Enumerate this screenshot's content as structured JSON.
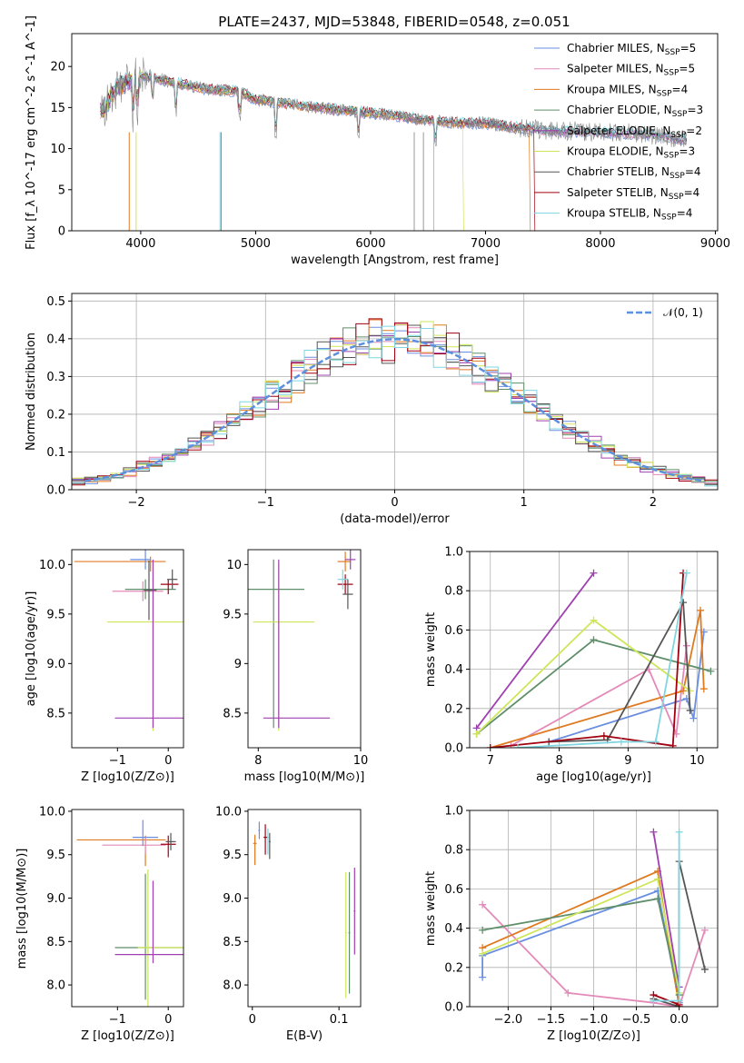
{
  "figure_title": "PLATE=2437, MJD=53848, FIBERID=0548, z=0.051",
  "legend_spectrum": [
    {
      "text": "Chabrier MILES, N",
      "sub": "SSP",
      "suffix": "=5",
      "color": "#6a8fe0"
    },
    {
      "text": "Salpeter MILES, N",
      "sub": "SSP",
      "suffix": "=5",
      "color": "#e48ab8"
    },
    {
      "text": "Kroupa MILES, N",
      "sub": "SSP",
      "suffix": "=4",
      "color": "#e07a20"
    },
    {
      "text": "Chabrier ELODIE, N",
      "sub": "SSP",
      "suffix": "=3",
      "color": "#5f8f6a"
    },
    {
      "text": "Salpeter ELODIE, N",
      "sub": "SSP",
      "suffix": "=2",
      "color": "#a040b0"
    },
    {
      "text": "Kroupa ELODIE, N",
      "sub": "SSP",
      "suffix": "=3",
      "color": "#cfe65a"
    },
    {
      "text": "Chabrier STELIB, N",
      "sub": "SSP",
      "suffix": "=4",
      "color": "#555555"
    },
    {
      "text": "Salpeter STELIB, N",
      "sub": "SSP",
      "suffix": "=4",
      "color": "#a00010"
    },
    {
      "text": "Kroupa STELIB, N",
      "sub": "SSP",
      "suffix": "=4",
      "color": "#7fd6e0"
    }
  ],
  "legend_hist": "𝒩(0, 1)",
  "chart_data": [
    {
      "type": "line",
      "id": "spectrum",
      "xlabel": "wavelength [Angstrom, rest frame]",
      "ylabel": "Flux [f_λ 10^-17 erg cm^-2 s^-1 A^-1]",
      "xlim": [
        3400,
        9020
      ],
      "ylim": [
        0,
        24
      ],
      "xticks": [
        4000,
        5000,
        6000,
        7000,
        8000,
        9000
      ],
      "yticks": [
        0,
        5,
        10,
        15,
        20
      ],
      "x": [
        3650,
        3800,
        4000,
        4300,
        4600,
        4850,
        5000,
        5400,
        5800,
        6100,
        6400,
        6700,
        7000,
        7300,
        7600,
        8000,
        8400,
        8750
      ],
      "y": [
        14.5,
        17.5,
        19.0,
        18.0,
        17.2,
        17.0,
        16.0,
        15.2,
        14.6,
        14.2,
        13.6,
        13.2,
        13.1,
        12.5,
        12.2,
        12.0,
        11.8,
        11.0
      ],
      "grid": false,
      "legend": "upper right"
    },
    {
      "type": "line",
      "id": "residual_histogram",
      "xlabel": "(data-model)/error",
      "ylabel": "Normed distribution",
      "xlim": [
        -2.5,
        2.5
      ],
      "ylim": [
        0,
        0.52
      ],
      "xticks": [
        -2,
        -1,
        0,
        1,
        2
      ],
      "yticks": [
        0.0,
        0.1,
        0.2,
        0.3,
        0.4,
        0.5
      ],
      "gaussian_sigma": 1,
      "grid": true,
      "legend": "upper right"
    },
    {
      "type": "scatter",
      "id": "age_vs_Z",
      "xlabel": "Z [log10(Z/Z⊙)]",
      "ylabel": "age  [log10(age/yr)]",
      "xlim": [
        -1.9,
        0.3
      ],
      "ylim": [
        8.15,
        10.15
      ],
      "xticks": [
        -1,
        0
      ],
      "yticks": [
        8.5,
        9.0,
        9.5,
        10.0
      ]
    },
    {
      "type": "scatter",
      "id": "age_vs_mass",
      "xlabel": "mass [log10(M/M⊙)]",
      "xlim": [
        7.8,
        10.0
      ],
      "ylim": [
        8.15,
        10.15
      ],
      "xticks": [
        8,
        10
      ],
      "yticks": [
        8.5,
        9.0,
        9.5,
        10.0
      ]
    },
    {
      "type": "line",
      "id": "massweight_vs_age",
      "xlabel": "age  [log10(age/yr)]",
      "ylabel": "mass weight",
      "xlim": [
        6.7,
        10.3
      ],
      "ylim": [
        0,
        1
      ],
      "xticks": [
        7,
        8,
        9,
        10
      ],
      "yticks": [
        0.0,
        0.2,
        0.4,
        0.6,
        0.8,
        1.0
      ],
      "grid": true,
      "series": [
        {
          "color": "#6a8fe0",
          "x": [
            7.85,
            9.85,
            9.95,
            10.1
          ],
          "y": [
            0.03,
            0.25,
            0.15,
            0.59
          ]
        },
        {
          "color": "#e48ab8",
          "x": [
            7.3,
            9.3,
            9.7,
            9.85
          ],
          "y": [
            0.01,
            0.4,
            0.07,
            0.52
          ]
        },
        {
          "color": "#e07a20",
          "x": [
            7.0,
            9.8,
            10.05,
            10.1
          ],
          "y": [
            0.0,
            0.29,
            0.7,
            0.3
          ]
        },
        {
          "color": "#5f8f6a",
          "x": [
            6.8,
            8.5,
            10.2
          ],
          "y": [
            0.07,
            0.55,
            0.39
          ]
        },
        {
          "color": "#a040b0",
          "x": [
            6.8,
            8.5
          ],
          "y": [
            0.1,
            0.89
          ]
        },
        {
          "color": "#cfe65a",
          "x": [
            6.8,
            8.5,
            9.9
          ],
          "y": [
            0.07,
            0.65,
            0.29
          ]
        },
        {
          "color": "#555555",
          "x": [
            7.85,
            8.7,
            9.8,
            9.9
          ],
          "y": [
            0.03,
            0.04,
            0.74,
            0.19
          ]
        },
        {
          "color": "#a00010",
          "x": [
            7.0,
            8.65,
            9.65,
            9.8
          ],
          "y": [
            0.0,
            0.06,
            0.01,
            0.89
          ]
        },
        {
          "color": "#7fd6e0",
          "x": [
            7.4,
            8.9,
            9.4,
            9.85
          ],
          "y": [
            0.0,
            0.03,
            0.03,
            0.89
          ]
        }
      ]
    },
    {
      "type": "scatter",
      "id": "mass_vs_Z",
      "xlabel": "Z [log10(Z/Z⊙)]",
      "ylabel": "mass [log10(M/M⊙)]",
      "xlim": [
        -1.9,
        0.3
      ],
      "ylim": [
        7.75,
        10.02
      ],
      "xticks": [
        -1,
        0
      ],
      "yticks": [
        8.0,
        8.5,
        9.0,
        9.5,
        10.0
      ]
    },
    {
      "type": "scatter",
      "id": "mass_vs_EBV",
      "xlabel": "E(B-V)",
      "xlim": [
        -0.005,
        0.125
      ],
      "ylim": [
        7.75,
        10.02
      ],
      "xticks": [
        0.0,
        0.1
      ],
      "yticks": [
        8.0,
        8.5,
        9.0,
        9.5,
        10.0
      ]
    },
    {
      "type": "line",
      "id": "massweight_vs_Z",
      "xlabel": "Z [log10(Z/Z⊙)]",
      "ylabel": "mass weight",
      "xlim": [
        -2.45,
        0.45
      ],
      "ylim": [
        0,
        1
      ],
      "xticks": [
        -2.0,
        -1.5,
        -1.0,
        -0.5,
        0.0
      ],
      "yticks": [
        0.0,
        0.2,
        0.4,
        0.6,
        0.8,
        1.0
      ],
      "grid": true,
      "series": [
        {
          "color": "#6a8fe0",
          "x": [
            -2.3,
            -2.3,
            -0.25,
            0.0
          ],
          "y": [
            0.15,
            0.26,
            0.59,
            0.02
          ]
        },
        {
          "color": "#e48ab8",
          "x": [
            -2.3,
            -1.3,
            -0.3,
            0.0,
            0.3
          ],
          "y": [
            0.52,
            0.07,
            0.02,
            0.0,
            0.39
          ]
        },
        {
          "color": "#e07a20",
          "x": [
            -2.3,
            -0.25,
            0.0
          ],
          "y": [
            0.3,
            0.69,
            0.0
          ]
        },
        {
          "color": "#5f8f6a",
          "x": [
            -2.3,
            -0.25,
            0.0
          ],
          "y": [
            0.39,
            0.55,
            0.06
          ]
        },
        {
          "color": "#a040b0",
          "x": [
            -0.3,
            0.0
          ],
          "y": [
            0.89,
            0.1
          ]
        },
        {
          "color": "#cfe65a",
          "x": [
            -2.3,
            -0.25,
            0.0
          ],
          "y": [
            0.27,
            0.65,
            0.07
          ]
        },
        {
          "color": "#555555",
          "x": [
            -0.3,
            0.0,
            0.0,
            0.3
          ],
          "y": [
            0.04,
            0.0,
            0.74,
            0.19
          ]
        },
        {
          "color": "#a00010",
          "x": [
            -0.3,
            0.0,
            0.0
          ],
          "y": [
            0.06,
            0.01,
            0.0
          ]
        },
        {
          "color": "#7fd6e0",
          "x": [
            -0.3,
            0.0,
            0.0
          ],
          "y": [
            0.03,
            0.03,
            0.89
          ]
        }
      ]
    }
  ]
}
